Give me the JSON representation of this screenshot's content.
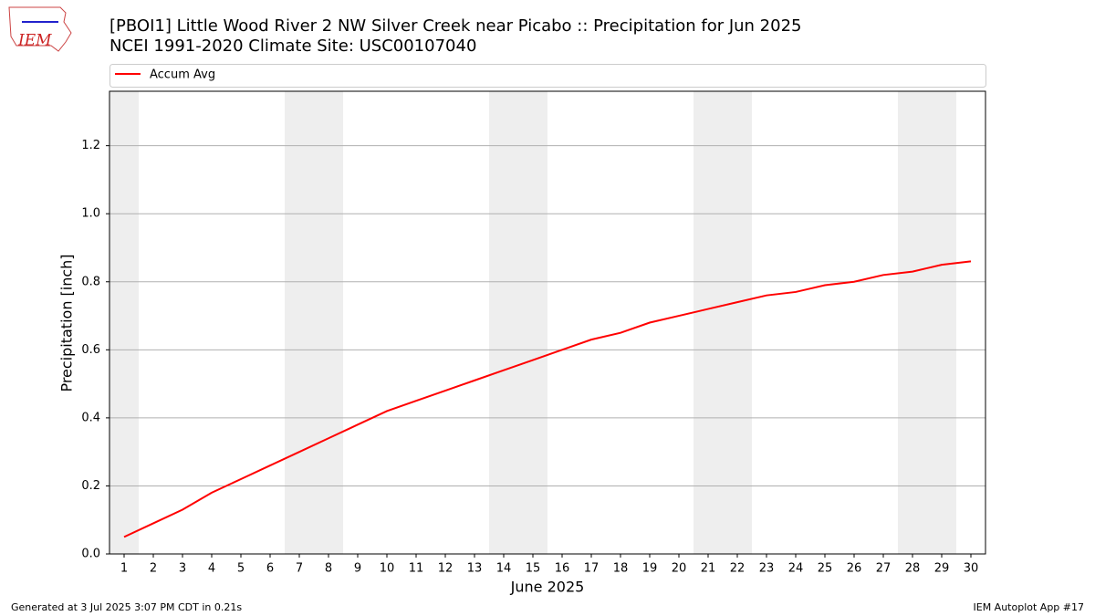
{
  "logo": "IEM",
  "footer": {
    "left": "Generated at 3 Jul 2025 3:07 PM CDT in 0.21s",
    "right": "IEM Autoplot App #17"
  },
  "chart_data": {
    "type": "line",
    "title": "[PBOI1] Little Wood River 2 NW Silver Creek near Picabo :: Precipitation for Jun 2025",
    "subtitle": "NCEI 1991-2020 Climate Site: USC00107040",
    "xlabel": "June 2025",
    "ylabel": "Precipitation [inch]",
    "x": [
      1,
      2,
      3,
      4,
      5,
      6,
      7,
      8,
      9,
      10,
      11,
      12,
      13,
      14,
      15,
      16,
      17,
      18,
      19,
      20,
      21,
      22,
      23,
      24,
      25,
      26,
      27,
      28,
      29,
      30
    ],
    "series": [
      {
        "name": "Accum Avg",
        "color": "#ff0000",
        "values": [
          0.05,
          0.09,
          0.13,
          0.18,
          0.22,
          0.26,
          0.3,
          0.34,
          0.38,
          0.42,
          0.45,
          0.48,
          0.51,
          0.54,
          0.57,
          0.6,
          0.63,
          0.65,
          0.68,
          0.7,
          0.72,
          0.74,
          0.76,
          0.77,
          0.79,
          0.8,
          0.82,
          0.83,
          0.85,
          0.86
        ]
      }
    ],
    "weekend_spans": [
      [
        0.5,
        1.5
      ],
      [
        6.5,
        8.5
      ],
      [
        13.5,
        15.5
      ],
      [
        20.5,
        22.5
      ],
      [
        27.5,
        29.5
      ]
    ],
    "xlim": [
      0.5,
      30.5
    ],
    "ylim": [
      0,
      1.36
    ],
    "xticks": [
      1,
      2,
      3,
      4,
      5,
      6,
      7,
      8,
      9,
      10,
      11,
      12,
      13,
      14,
      15,
      16,
      17,
      18,
      19,
      20,
      21,
      22,
      23,
      24,
      25,
      26,
      27,
      28,
      29,
      30
    ],
    "yticks": [
      {
        "value": 0,
        "label": "0.0"
      },
      0.2,
      0.4,
      0.6,
      0.8,
      {
        "value": 1,
        "label": "1.0"
      },
      1.2
    ],
    "grid": true,
    "legend": "top"
  }
}
